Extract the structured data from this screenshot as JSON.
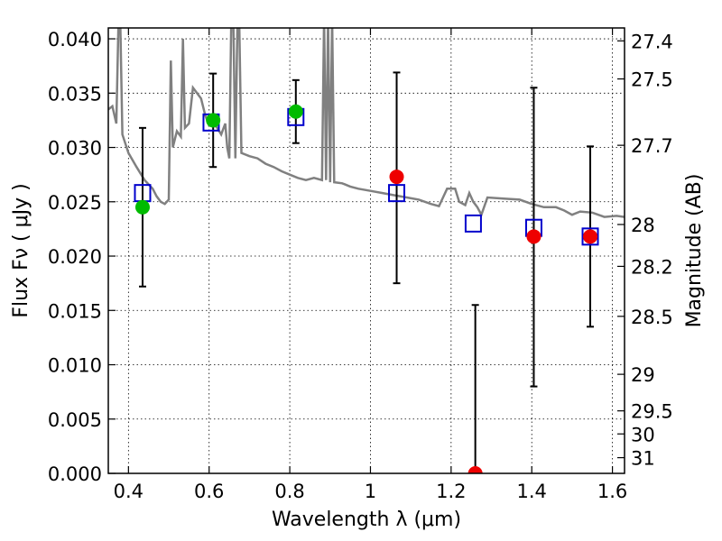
{
  "chart_data": {
    "type": "scatter",
    "xlabel": "Wavelength  λ (μm)",
    "ylabel": "Flux  Fν  ( μJy )",
    "ylabel_right": "Magnitude (AB)",
    "xlim": [
      0.35,
      1.63
    ],
    "ylim": [
      0.0,
      0.041
    ],
    "grid": true,
    "x_ticks": [
      0.4,
      0.6,
      0.8,
      1.0,
      1.2,
      1.4,
      1.6
    ],
    "x_tick_labels": [
      "0.4",
      "0.6",
      "0.8",
      "1",
      "1.2",
      "1.4",
      "1.6"
    ],
    "y_ticks": [
      0.0,
      0.005,
      0.01,
      0.015,
      0.02,
      0.025,
      0.03,
      0.035,
      0.04
    ],
    "y_tick_labels": [
      "0.000",
      "0.005",
      "0.010",
      "0.015",
      "0.020",
      "0.025",
      "0.030",
      "0.035",
      "0.040"
    ],
    "mag_ticks": [
      27.4,
      27.5,
      27.7,
      28,
      28.2,
      28.5,
      29,
      29.5,
      30,
      31
    ],
    "mag_tick_labels": [
      "27.4",
      "27.5",
      "27.7",
      "28",
      "28.2",
      "28.5",
      "29",
      "29.5",
      "30",
      "31"
    ],
    "colors": {
      "template": "#808080",
      "model_marker": "#0000cc",
      "green_points": "#00bb00",
      "red_points": "#ee0000",
      "errorbar": "#000000"
    },
    "template_spectrum": [
      [
        0.35,
        0.0335
      ],
      [
        0.36,
        0.0338
      ],
      [
        0.365,
        0.033
      ],
      [
        0.37,
        0.0322
      ],
      [
        0.375,
        0.0412
      ],
      [
        0.38,
        0.041
      ],
      [
        0.385,
        0.0312
      ],
      [
        0.4,
        0.0295
      ],
      [
        0.42,
        0.0282
      ],
      [
        0.44,
        0.027
      ],
      [
        0.46,
        0.0262
      ],
      [
        0.47,
        0.0255
      ],
      [
        0.48,
        0.025
      ],
      [
        0.49,
        0.0248
      ],
      [
        0.5,
        0.0252
      ],
      [
        0.505,
        0.038
      ],
      [
        0.51,
        0.03
      ],
      [
        0.52,
        0.0315
      ],
      [
        0.53,
        0.031
      ],
      [
        0.535,
        0.04
      ],
      [
        0.54,
        0.0318
      ],
      [
        0.55,
        0.0322
      ],
      [
        0.56,
        0.0355
      ],
      [
        0.57,
        0.035
      ],
      [
        0.58,
        0.0345
      ],
      [
        0.59,
        0.033
      ],
      [
        0.6,
        0.032
      ],
      [
        0.61,
        0.0322
      ],
      [
        0.62,
        0.0318
      ],
      [
        0.63,
        0.0312
      ],
      [
        0.64,
        0.0322
      ],
      [
        0.645,
        0.03
      ],
      [
        0.65,
        0.029
      ],
      [
        0.655,
        0.042
      ],
      [
        0.66,
        0.042
      ],
      [
        0.665,
        0.029
      ],
      [
        0.67,
        0.041
      ],
      [
        0.675,
        0.041
      ],
      [
        0.68,
        0.0295
      ],
      [
        0.7,
        0.0292
      ],
      [
        0.72,
        0.029
      ],
      [
        0.74,
        0.0285
      ],
      [
        0.76,
        0.0282
      ],
      [
        0.78,
        0.0278
      ],
      [
        0.8,
        0.0275
      ],
      [
        0.82,
        0.0272
      ],
      [
        0.84,
        0.027
      ],
      [
        0.86,
        0.0272
      ],
      [
        0.88,
        0.027
      ],
      [
        0.885,
        0.042
      ],
      [
        0.89,
        0.027
      ],
      [
        0.895,
        0.042
      ],
      [
        0.9,
        0.0268
      ],
      [
        0.905,
        0.042
      ],
      [
        0.91,
        0.0268
      ],
      [
        0.93,
        0.0267
      ],
      [
        0.95,
        0.0264
      ],
      [
        0.97,
        0.0262
      ],
      [
        1.0,
        0.026
      ],
      [
        1.03,
        0.0258
      ],
      [
        1.06,
        0.0256
      ],
      [
        1.09,
        0.0254
      ],
      [
        1.12,
        0.0252
      ],
      [
        1.15,
        0.0248
      ],
      [
        1.17,
        0.0246
      ],
      [
        1.18,
        0.0254
      ],
      [
        1.19,
        0.0262
      ],
      [
        1.21,
        0.0262
      ],
      [
        1.22,
        0.025
      ],
      [
        1.235,
        0.0247
      ],
      [
        1.245,
        0.0258
      ],
      [
        1.255,
        0.025
      ],
      [
        1.265,
        0.0245
      ],
      [
        1.275,
        0.0238
      ],
      [
        1.29,
        0.0254
      ],
      [
        1.33,
        0.0253
      ],
      [
        1.37,
        0.0252
      ],
      [
        1.4,
        0.0248
      ],
      [
        1.43,
        0.0245
      ],
      [
        1.46,
        0.0245
      ],
      [
        1.48,
        0.0242
      ],
      [
        1.5,
        0.0238
      ],
      [
        1.52,
        0.0241
      ],
      [
        1.55,
        0.024
      ],
      [
        1.58,
        0.0236
      ],
      [
        1.61,
        0.0237
      ],
      [
        1.63,
        0.0236
      ]
    ],
    "model_points": [
      {
        "x": 0.435,
        "y": 0.0258
      },
      {
        "x": 0.605,
        "y": 0.0323
      },
      {
        "x": 0.815,
        "y": 0.0328
      },
      {
        "x": 1.065,
        "y": 0.0258
      },
      {
        "x": 1.255,
        "y": 0.023
      },
      {
        "x": 1.405,
        "y": 0.0226
      },
      {
        "x": 1.545,
        "y": 0.0218
      }
    ],
    "observed_points": [
      {
        "x": 0.435,
        "y": 0.0245,
        "err_low": 0.0172,
        "err_high": 0.0318,
        "color": "green"
      },
      {
        "x": 0.61,
        "y": 0.0325,
        "err_low": 0.0282,
        "err_high": 0.0368,
        "color": "green"
      },
      {
        "x": 0.815,
        "y": 0.0333,
        "err_low": 0.0304,
        "err_high": 0.0362,
        "color": "green"
      },
      {
        "x": 1.065,
        "y": 0.0273,
        "err_low": 0.0175,
        "err_high": 0.0369,
        "color": "red"
      },
      {
        "x": 1.26,
        "y": 0.0,
        "err_low": 0.0,
        "err_high": 0.0155,
        "color": "red"
      },
      {
        "x": 1.405,
        "y": 0.0218,
        "err_low": 0.008,
        "err_high": 0.0355,
        "color": "red"
      },
      {
        "x": 1.545,
        "y": 0.0218,
        "err_low": 0.0135,
        "err_high": 0.0301,
        "color": "red"
      }
    ]
  }
}
